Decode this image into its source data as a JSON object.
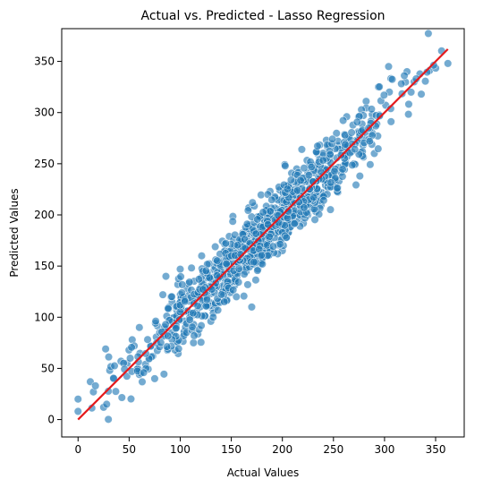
{
  "chart_data": {
    "type": "scatter",
    "title": "Actual vs. Predicted - Lasso Regression",
    "xlabel": "Actual Values",
    "ylabel": "Predicted Values",
    "xlim": [
      -16,
      378
    ],
    "ylim": [
      -17,
      382
    ],
    "xticks": [
      0,
      50,
      100,
      150,
      200,
      250,
      300,
      350
    ],
    "yticks": [
      0,
      50,
      100,
      150,
      200,
      250,
      300,
      350
    ],
    "grid": false,
    "legend": "none",
    "reference_line": {
      "from": [
        0,
        0
      ],
      "to": [
        362,
        362
      ],
      "color": "#e41a1c"
    },
    "point_color": "#1f77b4",
    "point_count": 1000,
    "points_sample": [
      [
        0,
        20
      ],
      [
        0,
        8
      ],
      [
        12,
        37
      ],
      [
        15,
        27
      ],
      [
        17,
        33
      ],
      [
        25,
        12
      ],
      [
        27,
        69
      ],
      [
        28,
        15
      ],
      [
        31,
        48
      ],
      [
        35,
        40
      ],
      [
        42,
        57
      ],
      [
        48,
        55
      ],
      [
        53,
        78
      ],
      [
        55,
        72
      ],
      [
        60,
        44
      ],
      [
        60,
        90
      ],
      [
        66,
        54
      ],
      [
        75,
        40
      ],
      [
        83,
        122
      ],
      [
        86,
        140
      ],
      [
        92,
        115
      ],
      [
        100,
        147
      ],
      [
        113,
        75
      ],
      [
        121,
        160
      ],
      [
        130,
        96
      ],
      [
        148,
        179
      ],
      [
        155,
        120
      ],
      [
        170,
        110
      ],
      [
        188,
        223
      ],
      [
        200,
        165
      ],
      [
        214,
        245
      ],
      [
        225,
        200
      ],
      [
        243,
        273
      ],
      [
        250,
        240
      ],
      [
        263,
        296
      ],
      [
        270,
        250
      ],
      [
        282,
        311
      ],
      [
        290,
        260
      ],
      [
        294,
        325
      ],
      [
        304,
        345
      ],
      [
        322,
        340
      ],
      [
        329,
        330
      ],
      [
        336,
        318
      ],
      [
        344,
        341
      ],
      [
        362,
        348
      ]
    ]
  }
}
